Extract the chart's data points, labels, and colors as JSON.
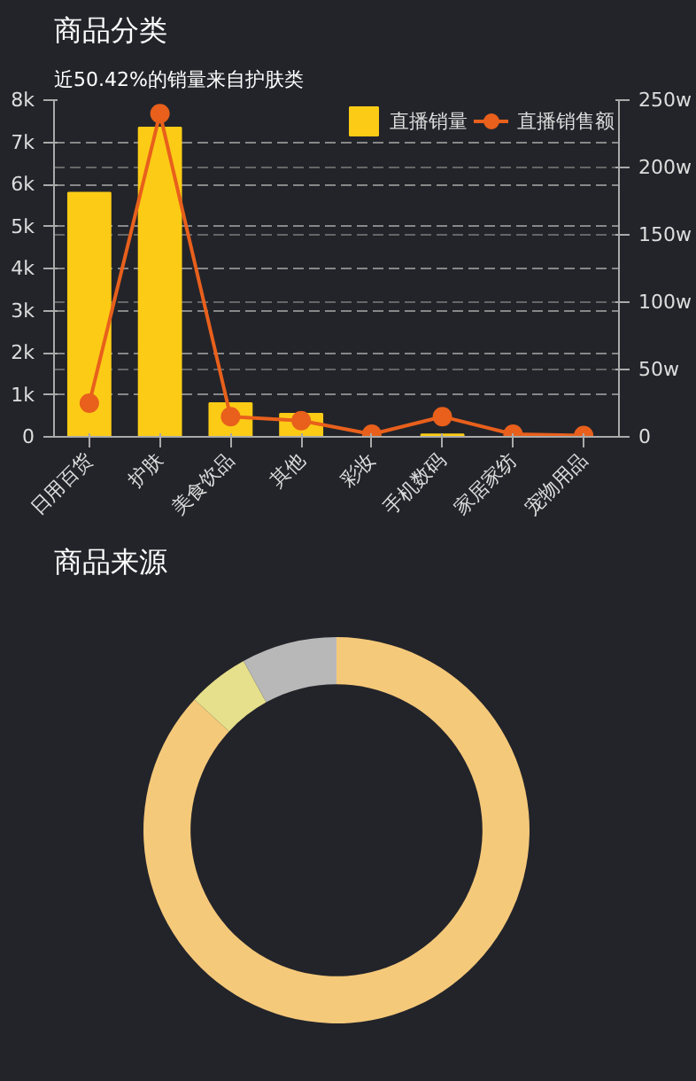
{
  "chart_data": [
    {
      "type": "bar",
      "title": "商品分类",
      "subtitle": "近50.42%的销量来自护肤类",
      "categories": [
        "日用百货",
        "护肤",
        "美食饮品",
        "其他",
        "彩妆",
        "手机数码",
        "家居家纺",
        "宠物用品"
      ],
      "series": [
        {
          "name": "直播销售额",
          "type": "line",
          "axis": "y2",
          "color": "#e8601c",
          "values": [
            25,
            240,
            15,
            12,
            2,
            15,
            2,
            1
          ]
        },
        {
          "name": "直播销量",
          "type": "bar",
          "color": "#fccb16",
          "values": [
            5800,
            7350,
            800,
            550,
            null,
            60,
            null,
            null
          ]
        }
      ],
      "ylim": [
        0,
        8000
      ],
      "yticks": [
        {
          "value": 0,
          "label": "0"
        },
        {
          "value": 1000,
          "label": "1k"
        },
        {
          "value": 2000,
          "label": "2k"
        },
        {
          "value": 3000,
          "label": "3k"
        },
        {
          "value": 4000,
          "label": "4k"
        },
        {
          "value": 5000,
          "label": "5k"
        },
        {
          "value": 6000,
          "label": "6k"
        },
        {
          "value": 7000,
          "label": "7k"
        },
        {
          "value": 8000,
          "label": "8k"
        }
      ],
      "y2lim": [
        0,
        250
      ],
      "y2ticks": [
        {
          "value": 0,
          "label": "0"
        },
        {
          "value": 50,
          "label": "50w"
        },
        {
          "value": 100,
          "label": "100w"
        },
        {
          "value": 150,
          "label": "150w"
        },
        {
          "value": 200,
          "label": "200w"
        },
        {
          "value": 250,
          "label": "250w"
        }
      ],
      "grid": "y",
      "legend": "top right",
      "marker": "circle"
    },
    {
      "type": "donut",
      "title": "商品来源",
      "categories": [
        null,
        null,
        null
      ],
      "values": [
        86.84,
        5.16,
        8
      ],
      "colors": [
        "#f5c97a",
        "#e6e08c",
        "#b8b8b8"
      ]
    }
  ]
}
